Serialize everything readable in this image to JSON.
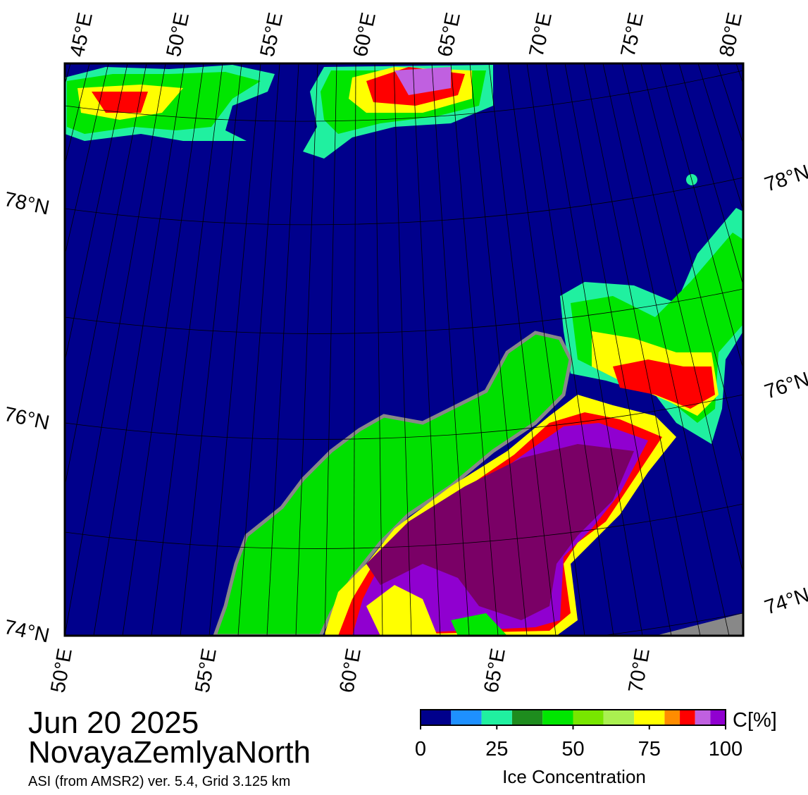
{
  "map": {
    "top_labels": [
      "45°E",
      "50°E",
      "55°E",
      "60°E",
      "65°E",
      "70°E",
      "75°E",
      "80°E"
    ],
    "right_labels": [
      "78°N",
      "76°N",
      "74°N"
    ],
    "left_labels": [
      "78°N",
      "76°N",
      "74°N"
    ],
    "bottom_labels": [
      "50°E",
      "55°E",
      "60°E",
      "65°E",
      "70°E"
    ]
  },
  "title": {
    "date": "Jun 20 2025",
    "region": "NovayaZemlyaNorth",
    "source": "ASI (from AMSR2) ver. 5.4,  Grid 3.125 km"
  },
  "colorbar": {
    "unit": "C[%]",
    "label": "Ice Concentration",
    "lim": [
      0,
      100
    ],
    "ticks": [
      0,
      25,
      50,
      75,
      100
    ],
    "bounds": [
      0,
      10,
      20,
      30,
      40,
      50,
      60,
      70,
      80,
      85,
      90,
      95,
      100
    ],
    "colors": [
      "#00008c",
      "#1e90ff",
      "#20f0a0",
      "#1e8c1e",
      "#00e600",
      "#78e600",
      "#aaf050",
      "#ffff00",
      "#ff8c00",
      "#ff0000",
      "#c060e0",
      "#9000d0"
    ]
  }
}
